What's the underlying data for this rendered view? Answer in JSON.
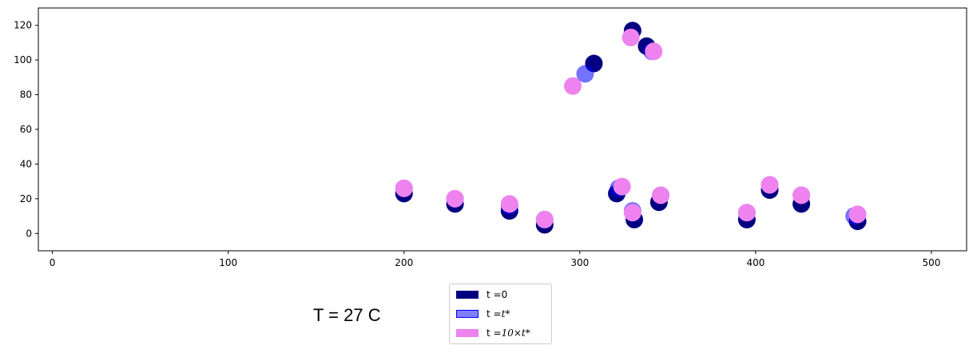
{
  "chart_data": {
    "type": "scatter",
    "xlim": [
      -8,
      520
    ],
    "ylim": [
      -10,
      130
    ],
    "x_ticks": [
      "0",
      "100",
      "200",
      "300",
      "400",
      "500"
    ],
    "y_ticks": [
      "0",
      "20",
      "40",
      "60",
      "80",
      "100",
      "120"
    ],
    "grid": false,
    "legend_position": "bottom-center",
    "series": [
      {
        "name": "t = 0",
        "color": "#000080",
        "alpha": 1.0,
        "points": [
          [
            200,
            23
          ],
          [
            229,
            17
          ],
          [
            260,
            13
          ],
          [
            280,
            5
          ],
          [
            308,
            98
          ],
          [
            321,
            23
          ],
          [
            330,
            117
          ],
          [
            331,
            8
          ],
          [
            338,
            108
          ],
          [
            345,
            18
          ],
          [
            395,
            8
          ],
          [
            408,
            25
          ],
          [
            426,
            17
          ],
          [
            458,
            7
          ]
        ]
      },
      {
        "name": "t = t*",
        "color": "#0000ff",
        "alpha": 0.55,
        "points": [
          [
            200,
            26
          ],
          [
            229,
            20
          ],
          [
            260,
            16
          ],
          [
            280,
            8
          ],
          [
            303,
            92
          ],
          [
            322,
            26
          ],
          [
            330,
            13
          ],
          [
            341,
            105
          ],
          [
            346,
            22
          ],
          [
            395,
            12
          ],
          [
            408,
            28
          ],
          [
            426,
            22
          ],
          [
            456,
            10
          ]
        ]
      },
      {
        "name": "t = 10×t*",
        "color": "#ee82ee",
        "alpha": 1.0,
        "points": [
          [
            200,
            26
          ],
          [
            229,
            20
          ],
          [
            260,
            17
          ],
          [
            280,
            8
          ],
          [
            296,
            85
          ],
          [
            324,
            27
          ],
          [
            329,
            113
          ],
          [
            330,
            12
          ],
          [
            342,
            105
          ],
          [
            346,
            22
          ],
          [
            395,
            12
          ],
          [
            408,
            28
          ],
          [
            426,
            22
          ],
          [
            458,
            11
          ]
        ]
      }
    ]
  },
  "legend": {
    "entries": [
      {
        "label_prefix": "t = ",
        "label_math": "0",
        "color": "#000080",
        "border": "#000080",
        "alpha": 1.0
      },
      {
        "label_prefix": "t =  ",
        "label_math": "t*",
        "color": "#8080ff",
        "border": "#0000ff",
        "alpha": 1.0
      },
      {
        "label_prefix": "t =  ",
        "label_math": "10×t*",
        "color": "#ee82ee",
        "border": "#ee82ee",
        "alpha": 1.0
      }
    ]
  },
  "annotation": {
    "temperature": "T = 27 C"
  }
}
